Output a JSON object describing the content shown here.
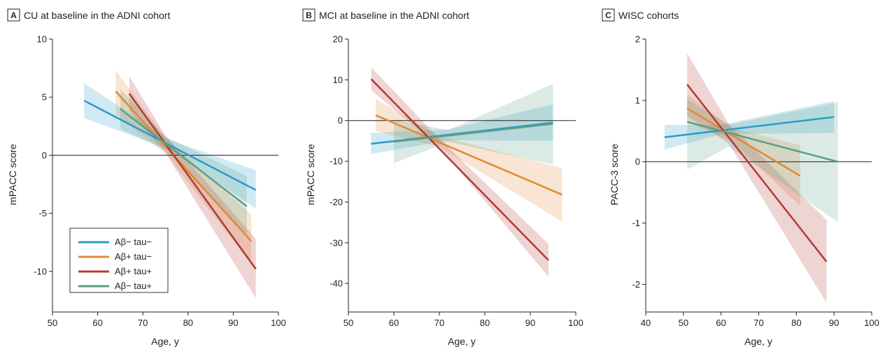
{
  "colors": {
    "ab_neg_tau_neg": "#2b9acb",
    "ab_pos_tau_neg": "#e08a35",
    "ab_pos_tau_pos": "#b23a35",
    "ab_neg_tau_pos": "#5c9e86"
  },
  "legend": {
    "items": [
      {
        "label": "Aβ− tau−",
        "color_key": "ab_neg_tau_neg"
      },
      {
        "label": "Aβ+ tau−",
        "color_key": "ab_pos_tau_neg"
      },
      {
        "label": "Aβ+ tau+",
        "color_key": "ab_pos_tau_pos"
      },
      {
        "label": "Aβ− tau+",
        "color_key": "ab_neg_tau_pos"
      }
    ]
  },
  "chart_data": [
    {
      "type": "line",
      "letter": "A",
      "title": "CU at baseline in the ADNI cohort",
      "xlabel": "Age, y",
      "ylabel": "mPACC score",
      "xlim": [
        50,
        100
      ],
      "ylim": [
        -13.5,
        10
      ],
      "xticks": [
        50,
        60,
        70,
        80,
        90,
        100
      ],
      "yticks": [
        10,
        5,
        0,
        -5,
        -10
      ],
      "ytick_labels": [
        "10",
        "5",
        "0",
        "-5",
        "-10"
      ],
      "zero_line": 0,
      "series": [
        {
          "name": "Aβ− tau−",
          "color_key": "ab_neg_tau_neg",
          "x": [
            57,
            95
          ],
          "y": [
            4.7,
            -3.0
          ],
          "band": [
            {
              "x": 57,
              "lo": 3.2,
              "hi": 6.2
            },
            {
              "x": 76,
              "lo": 0.5,
              "hi": 1.3
            },
            {
              "x": 95,
              "lo": -4.6,
              "hi": -1.3
            }
          ]
        },
        {
          "name": "Aβ+ tau−",
          "color_key": "ab_pos_tau_neg",
          "x": [
            64,
            94
          ],
          "y": [
            5.5,
            -7.4
          ],
          "band": [
            {
              "x": 64,
              "lo": 3.5,
              "hi": 7.3
            },
            {
              "x": 75,
              "lo": 0.2,
              "hi": 1.5
            },
            {
              "x": 94,
              "lo": -9.4,
              "hi": -5.1
            }
          ]
        },
        {
          "name": "Aβ+ tau+",
          "color_key": "ab_pos_tau_pos",
          "x": [
            67,
            95
          ],
          "y": [
            5.3,
            -9.8
          ],
          "band": [
            {
              "x": 67,
              "lo": 3.8,
              "hi": 6.8
            },
            {
              "x": 75,
              "lo": 0.2,
              "hi": 1.7
            },
            {
              "x": 95,
              "lo": -12.3,
              "hi": -7.2
            }
          ]
        },
        {
          "name": "Aβ− tau+",
          "color_key": "ab_neg_tau_pos",
          "x": [
            65,
            93
          ],
          "y": [
            4.0,
            -4.4
          ],
          "band": [
            {
              "x": 65,
              "lo": 2.3,
              "hi": 5.7
            },
            {
              "x": 75,
              "lo": 0.4,
              "hi": 1.6
            },
            {
              "x": 93,
              "lo": -6.9,
              "hi": -1.8
            }
          ]
        }
      ]
    },
    {
      "type": "line",
      "letter": "B",
      "title": "MCI at baseline in the ADNI cohort",
      "xlabel": "Age, y",
      "ylabel": "mPACC score",
      "xlim": [
        50,
        100
      ],
      "ylim": [
        -47,
        20
      ],
      "xticks": [
        50,
        60,
        70,
        80,
        90,
        100
      ],
      "yticks": [
        20,
        10,
        0,
        -10,
        -20,
        -30,
        -40
      ],
      "ytick_labels": [
        "20",
        "10",
        "0",
        "-10",
        "-20",
        "-30",
        "-40"
      ],
      "zero_line": 0,
      "series": [
        {
          "name": "Aβ− tau−",
          "color_key": "ab_neg_tau_neg",
          "x": [
            55,
            95
          ],
          "y": [
            -5.7,
            -0.5
          ],
          "band": [
            {
              "x": 55,
              "lo": -8.2,
              "hi": -3.0
            },
            {
              "x": 72,
              "lo": -4.8,
              "hi": -2.2
            },
            {
              "x": 95,
              "lo": -5.0,
              "hi": 4.0
            }
          ]
        },
        {
          "name": "Aβ+ tau−",
          "color_key": "ab_pos_tau_neg",
          "x": [
            56,
            97
          ],
          "y": [
            1.3,
            -18.2
          ],
          "band": [
            {
              "x": 56,
              "lo": -2.5,
              "hi": 5.3
            },
            {
              "x": 70,
              "lo": -6.5,
              "hi": -3.8
            },
            {
              "x": 97,
              "lo": -24.8,
              "hi": -11.7
            }
          ]
        },
        {
          "name": "Aβ+ tau+",
          "color_key": "ab_pos_tau_pos",
          "x": [
            55,
            94
          ],
          "y": [
            10.2,
            -34.3
          ],
          "band": [
            {
              "x": 55,
              "lo": 7.4,
              "hi": 13.1
            },
            {
              "x": 70,
              "lo": -6.5,
              "hi": -4.5
            },
            {
              "x": 94,
              "lo": -38.3,
              "hi": -30.3
            }
          ]
        },
        {
          "name": "Aβ− tau+",
          "color_key": "ab_neg_tau_pos",
          "x": [
            60,
            95
          ],
          "y": [
            -5.2,
            -0.8
          ],
          "band": [
            {
              "x": 60,
              "lo": -10.5,
              "hi": 0.2
            },
            {
              "x": 72,
              "lo": -5.2,
              "hi": -2.3
            },
            {
              "x": 95,
              "lo": -10.8,
              "hi": 9.0
            }
          ]
        }
      ]
    },
    {
      "type": "line",
      "letter": "C",
      "title": "WISC cohorts",
      "xlabel": "Age, y",
      "ylabel": "PACC-3 score",
      "xlim": [
        40,
        100
      ],
      "ylim": [
        -2.45,
        2
      ],
      "xticks": [
        40,
        50,
        60,
        70,
        80,
        90,
        100
      ],
      "yticks": [
        2,
        1,
        0,
        -1,
        -2
      ],
      "ytick_labels": [
        "2",
        "1",
        "0",
        "-1",
        "-2"
      ],
      "zero_line": 0,
      "series": [
        {
          "name": "Aβ− tau−",
          "color_key": "ab_neg_tau_neg",
          "x": [
            45,
            90
          ],
          "y": [
            0.4,
            0.73
          ],
          "band": [
            {
              "x": 45,
              "lo": 0.2,
              "hi": 0.6
            },
            {
              "x": 60,
              "lo": 0.45,
              "hi": 0.6
            },
            {
              "x": 90,
              "lo": 0.47,
              "hi": 0.99
            }
          ]
        },
        {
          "name": "Aβ+ tau−",
          "color_key": "ab_pos_tau_neg",
          "x": [
            51,
            81
          ],
          "y": [
            0.87,
            -0.23
          ],
          "band": [
            {
              "x": 51,
              "lo": 0.65,
              "hi": 1.1
            },
            {
              "x": 63,
              "lo": 0.33,
              "hi": 0.55
            },
            {
              "x": 81,
              "lo": -0.72,
              "hi": 0.27
            }
          ]
        },
        {
          "name": "Aβ+ tau+",
          "color_key": "ab_pos_tau_pos",
          "x": [
            51,
            88
          ],
          "y": [
            1.26,
            -1.63
          ],
          "band": [
            {
              "x": 51,
              "lo": 0.75,
              "hi": 1.77
            },
            {
              "x": 62,
              "lo": 0.3,
              "hi": 0.62
            },
            {
              "x": 88,
              "lo": -2.3,
              "hi": -0.95
            }
          ]
        },
        {
          "name": "Aβ− tau+",
          "color_key": "ab_neg_tau_pos",
          "x": [
            51,
            91
          ],
          "y": [
            0.65,
            0.0
          ],
          "band": [
            {
              "x": 51,
              "lo": -0.13,
              "hi": 1.02
            },
            {
              "x": 62,
              "lo": 0.25,
              "hi": 0.6
            },
            {
              "x": 91,
              "lo": -0.98,
              "hi": 0.97
            }
          ]
        }
      ]
    }
  ]
}
